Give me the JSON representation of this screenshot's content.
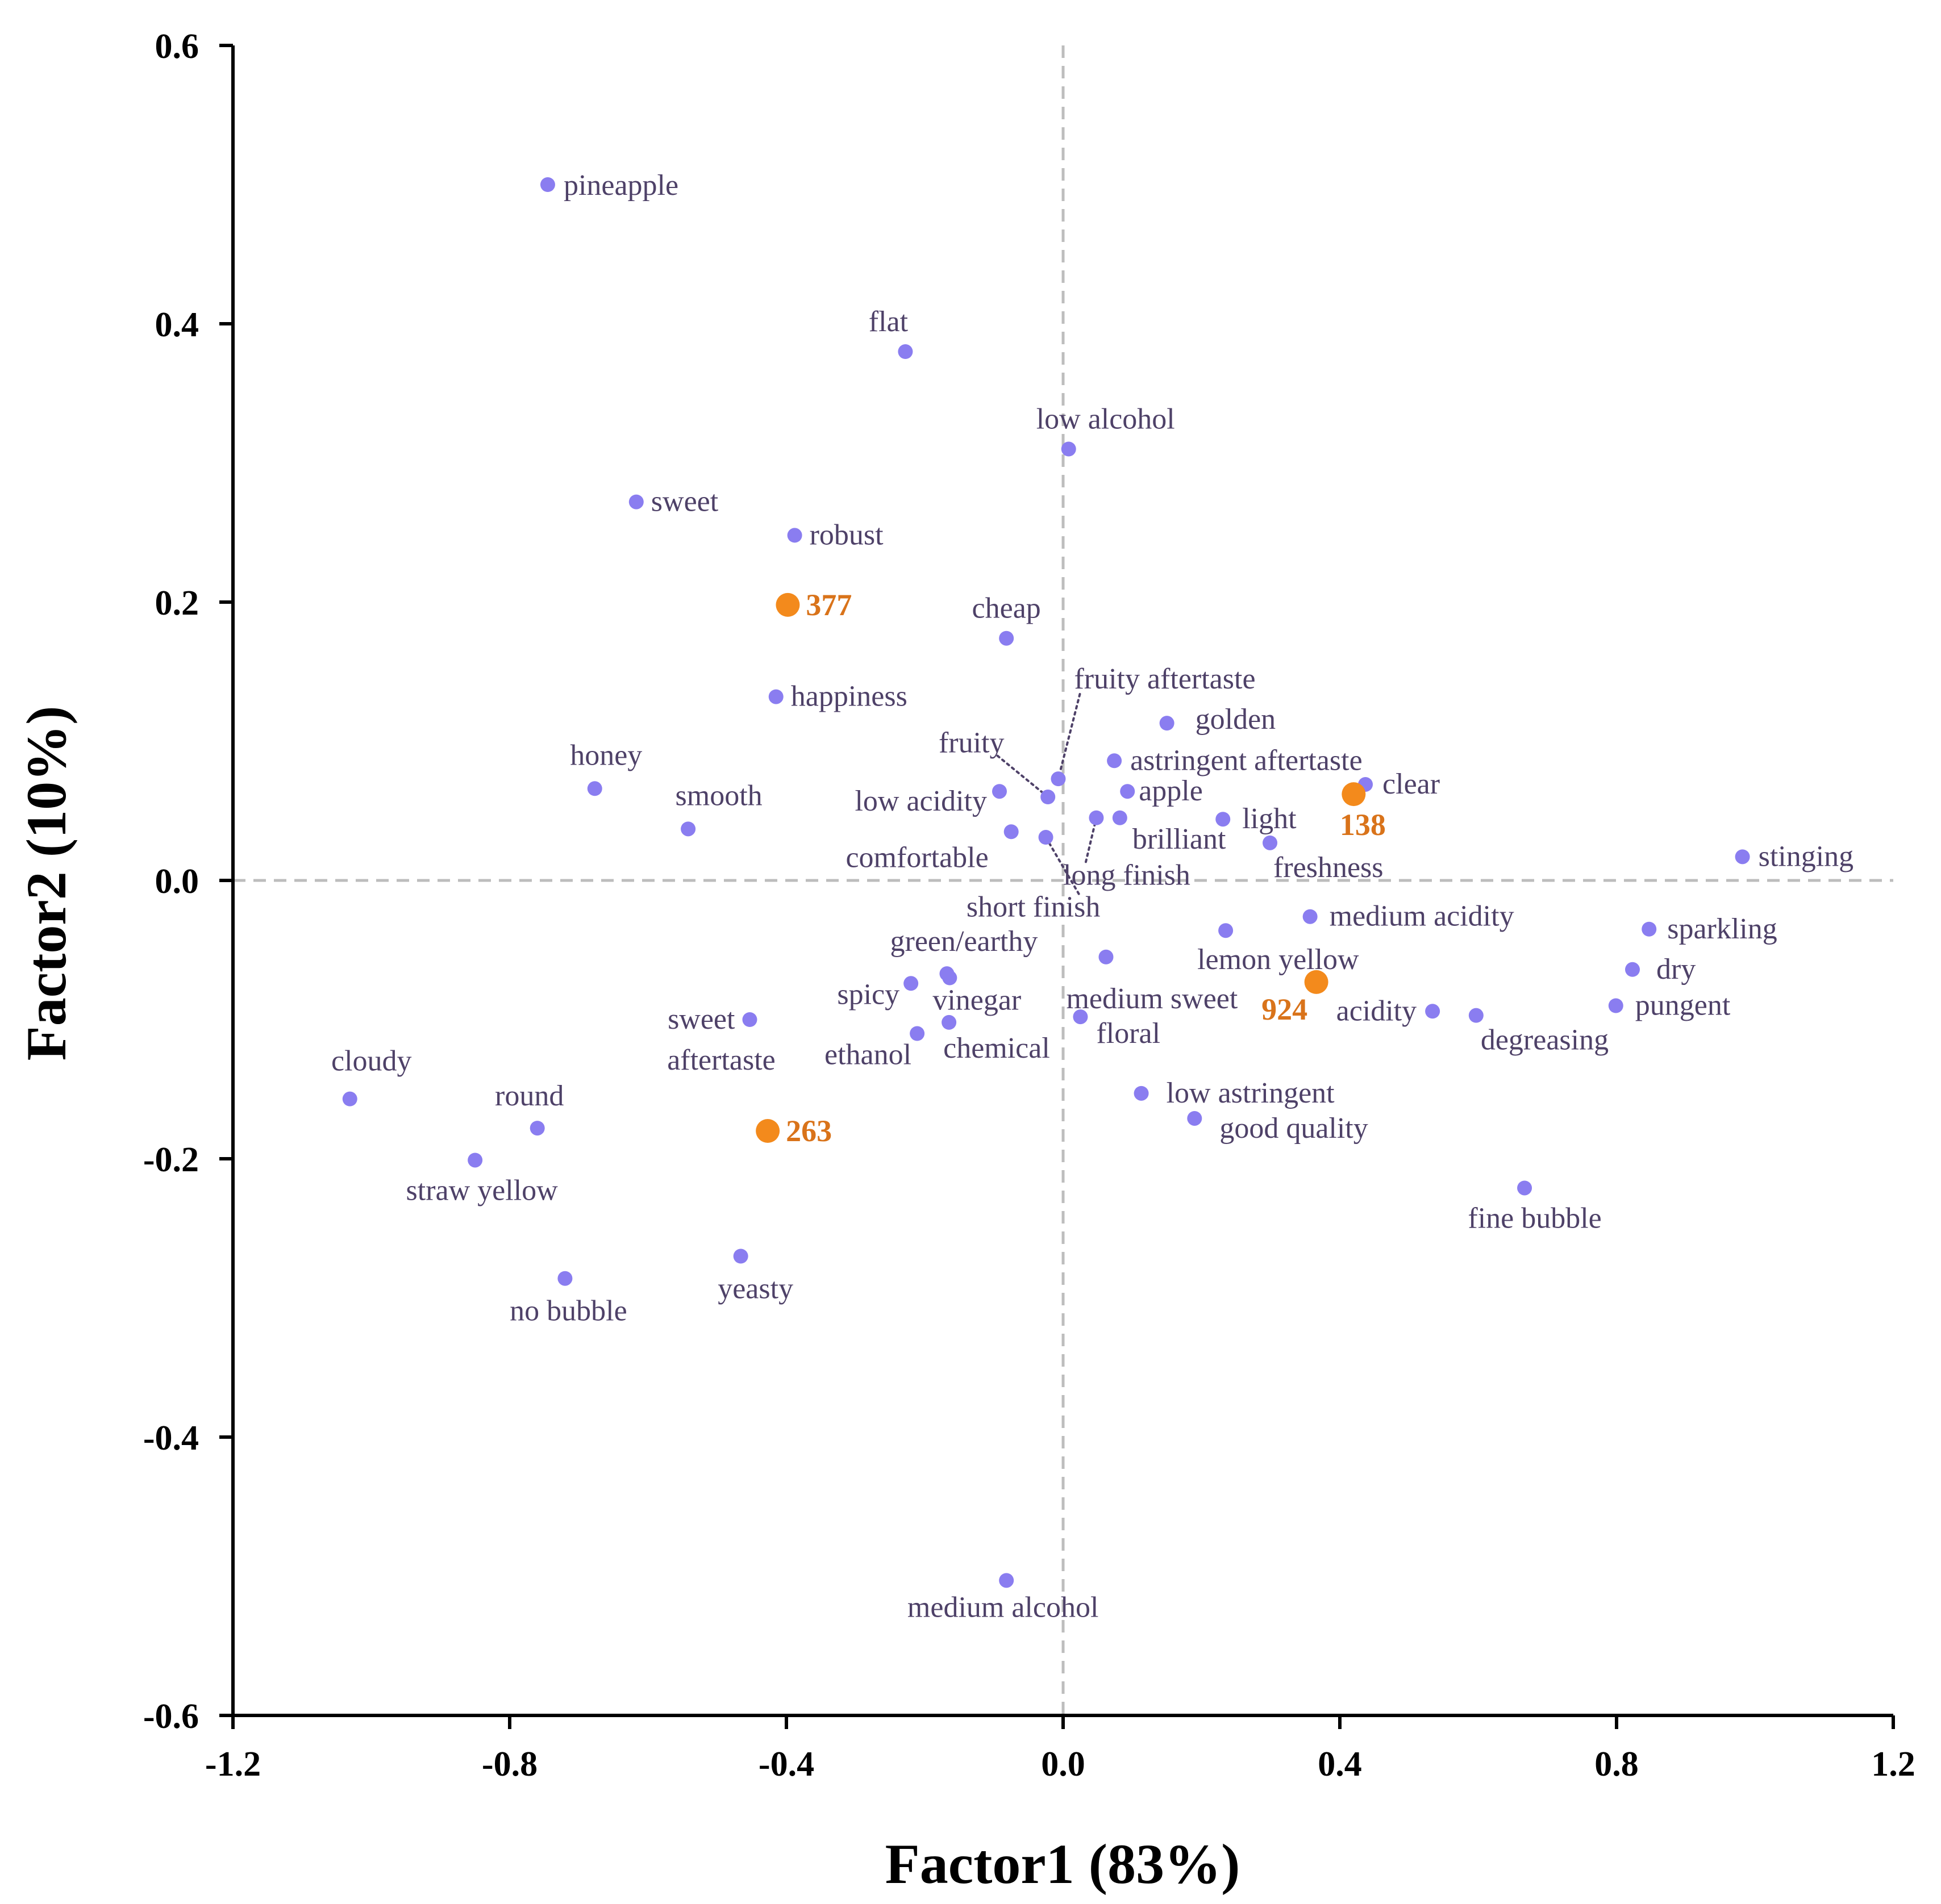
{
  "chart_data": {
    "type": "scatter",
    "xlabel": "Factor1 (83%)",
    "ylabel": "Factor2 (10%)",
    "xlim": [
      -1.2,
      1.2
    ],
    "ylim": [
      -0.6,
      0.6
    ],
    "x_ticks": [
      "-1.2",
      "-0.8",
      "-0.4",
      "0.0",
      "0.4",
      "0.8",
      "1.2"
    ],
    "y_ticks": [
      "0.6",
      "0.4",
      "0.2",
      "0.0",
      "-0.2",
      "-0.4",
      "-0.6"
    ],
    "reference_lines": {
      "x": 0,
      "y": 0,
      "style": "dashed"
    },
    "colors": {
      "attribute": "#8a7df0",
      "sample": "#f38a1c",
      "attribute_text": "#4e4168",
      "sample_text": "#d9731a",
      "axis": "#000000",
      "reference": "#bdbdbd"
    },
    "attributes": [
      {
        "name": "pineapple",
        "x": -0.745,
        "y": 0.5
      },
      {
        "name": "flat",
        "x": -0.228,
        "y": 0.38
      },
      {
        "name": "low alcohol",
        "x": 0.008,
        "y": 0.31
      },
      {
        "name": "sweet",
        "x": -0.617,
        "y": 0.272
      },
      {
        "name": "robust",
        "x": -0.388,
        "y": 0.248
      },
      {
        "name": "cheap",
        "x": -0.082,
        "y": 0.174
      },
      {
        "name": "happiness",
        "x": -0.415,
        "y": 0.132
      },
      {
        "name": "fruity aftertaste",
        "x": -0.007,
        "y": 0.073
      },
      {
        "name": "golden",
        "x": 0.15,
        "y": 0.113
      },
      {
        "name": "fruity",
        "x": -0.022,
        "y": 0.06
      },
      {
        "name": "astringent aftertaste",
        "x": 0.074,
        "y": 0.086
      },
      {
        "name": "honey",
        "x": -0.677,
        "y": 0.066
      },
      {
        "name": "smooth",
        "x": -0.542,
        "y": 0.037
      },
      {
        "name": "low acidity",
        "x": -0.092,
        "y": 0.064
      },
      {
        "name": "apple",
        "x": 0.093,
        "y": 0.064
      },
      {
        "name": "clear",
        "x": 0.437,
        "y": 0.069
      },
      {
        "name": "light",
        "x": 0.231,
        "y": 0.044
      },
      {
        "name": "brilliant",
        "x": 0.082,
        "y": 0.045
      },
      {
        "name": "long finish",
        "x": 0.048,
        "y": 0.045
      },
      {
        "name": "comfortable",
        "x": -0.075,
        "y": 0.035
      },
      {
        "name": "short finish",
        "x": -0.025,
        "y": 0.031
      },
      {
        "name": "freshness",
        "x": 0.299,
        "y": 0.027
      },
      {
        "name": "stinging",
        "x": 0.982,
        "y": 0.017
      },
      {
        "name": "medium acidity",
        "x": 0.357,
        "y": -0.026
      },
      {
        "name": "sparkling",
        "x": 0.847,
        "y": -0.035
      },
      {
        "name": "lemon yellow",
        "x": 0.235,
        "y": -0.036
      },
      {
        "name": "medium sweet",
        "x": 0.062,
        "y": -0.055
      },
      {
        "name": "dry",
        "x": 0.823,
        "y": -0.064
      },
      {
        "name": "green/earthy",
        "x": -0.168,
        "y": -0.067
      },
      {
        "name": "vinegar",
        "x": -0.164,
        "y": -0.07
      },
      {
        "name": "spicy",
        "x": -0.22,
        "y": -0.074
      },
      {
        "name": "pungent",
        "x": 0.799,
        "y": -0.09
      },
      {
        "name": "acidity",
        "x": 0.534,
        "y": -0.094
      },
      {
        "name": "degreasing",
        "x": 0.597,
        "y": -0.097
      },
      {
        "name": "floral",
        "x": 0.025,
        "y": -0.098
      },
      {
        "name": "sweet aftertaste",
        "x": -0.453,
        "y": -0.1
      },
      {
        "name": "chemical",
        "x": -0.165,
        "y": -0.102
      },
      {
        "name": "ethanol",
        "x": -0.211,
        "y": -0.11
      },
      {
        "name": "low astringent",
        "x": 0.113,
        "y": -0.153
      },
      {
        "name": "cloudy",
        "x": -1.031,
        "y": -0.157
      },
      {
        "name": "round",
        "x": -0.76,
        "y": -0.178
      },
      {
        "name": "good quality",
        "x": 0.19,
        "y": -0.171
      },
      {
        "name": "straw yellow",
        "x": -0.85,
        "y": -0.201
      },
      {
        "name": "fine bubble",
        "x": 0.667,
        "y": -0.221
      },
      {
        "name": "yeasty",
        "x": -0.466,
        "y": -0.27
      },
      {
        "name": "no bubble",
        "x": -0.72,
        "y": -0.286
      },
      {
        "name": "medium alcohol",
        "x": -0.082,
        "y": -0.503
      }
    ],
    "samples": [
      {
        "name": "377",
        "x": -0.398,
        "y": 0.198
      },
      {
        "name": "138",
        "x": 0.42,
        "y": 0.062
      },
      {
        "name": "924",
        "x": 0.366,
        "y": -0.073
      },
      {
        "name": "263",
        "x": -0.427,
        "y": -0.18
      }
    ]
  }
}
